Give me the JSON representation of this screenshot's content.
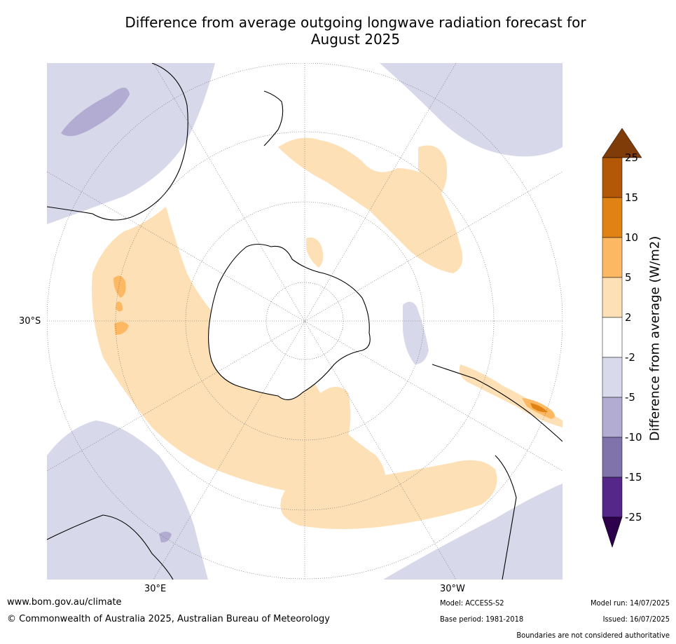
{
  "title_line1": "Difference from average outgoing longwave radiation forecast for",
  "title_line2": "August 2025",
  "map": {
    "projection": "south-polar stereographic",
    "lat_label": "30°S",
    "lon_labels": [
      "30°E",
      "30°W"
    ],
    "colors": {
      "ocean": "#ffffff",
      "neg2_5": "#d8d8eb",
      "neg5_10": "#b2abd2",
      "neg10_15": "#8073ac",
      "pos2_5": "#fee0b6",
      "pos5_10": "#fdb863",
      "pos10_15": "#e08214",
      "pos15_25": "#b35806",
      "coast": "#000000",
      "grid": "#666666"
    }
  },
  "colorbar": {
    "label": "Difference from average (W/m2)",
    "ticks": [
      "25",
      "15",
      "10",
      "5",
      "2",
      "-2",
      "-5",
      "-10",
      "-15",
      "-25"
    ],
    "colors": [
      "#7f3b08",
      "#b35806",
      "#e08214",
      "#fdb863",
      "#fee0b6",
      "#ffffff",
      "#d8daeb",
      "#b2abd2",
      "#8073ac",
      "#542788",
      "#2d004b"
    ]
  },
  "footer": {
    "url": "www.bom.gov.au/climate",
    "copyright": "© Commonwealth of Australia 2025, Australian Bureau of Meteorology",
    "model": "Model: ACCESS-S2",
    "base_period": "Base period: 1981-2018",
    "model_run": "Model run: 14/07/2025",
    "issued": "Issued: 16/07/2025",
    "disclaimer": "Boundaries are not considered authoritative"
  }
}
